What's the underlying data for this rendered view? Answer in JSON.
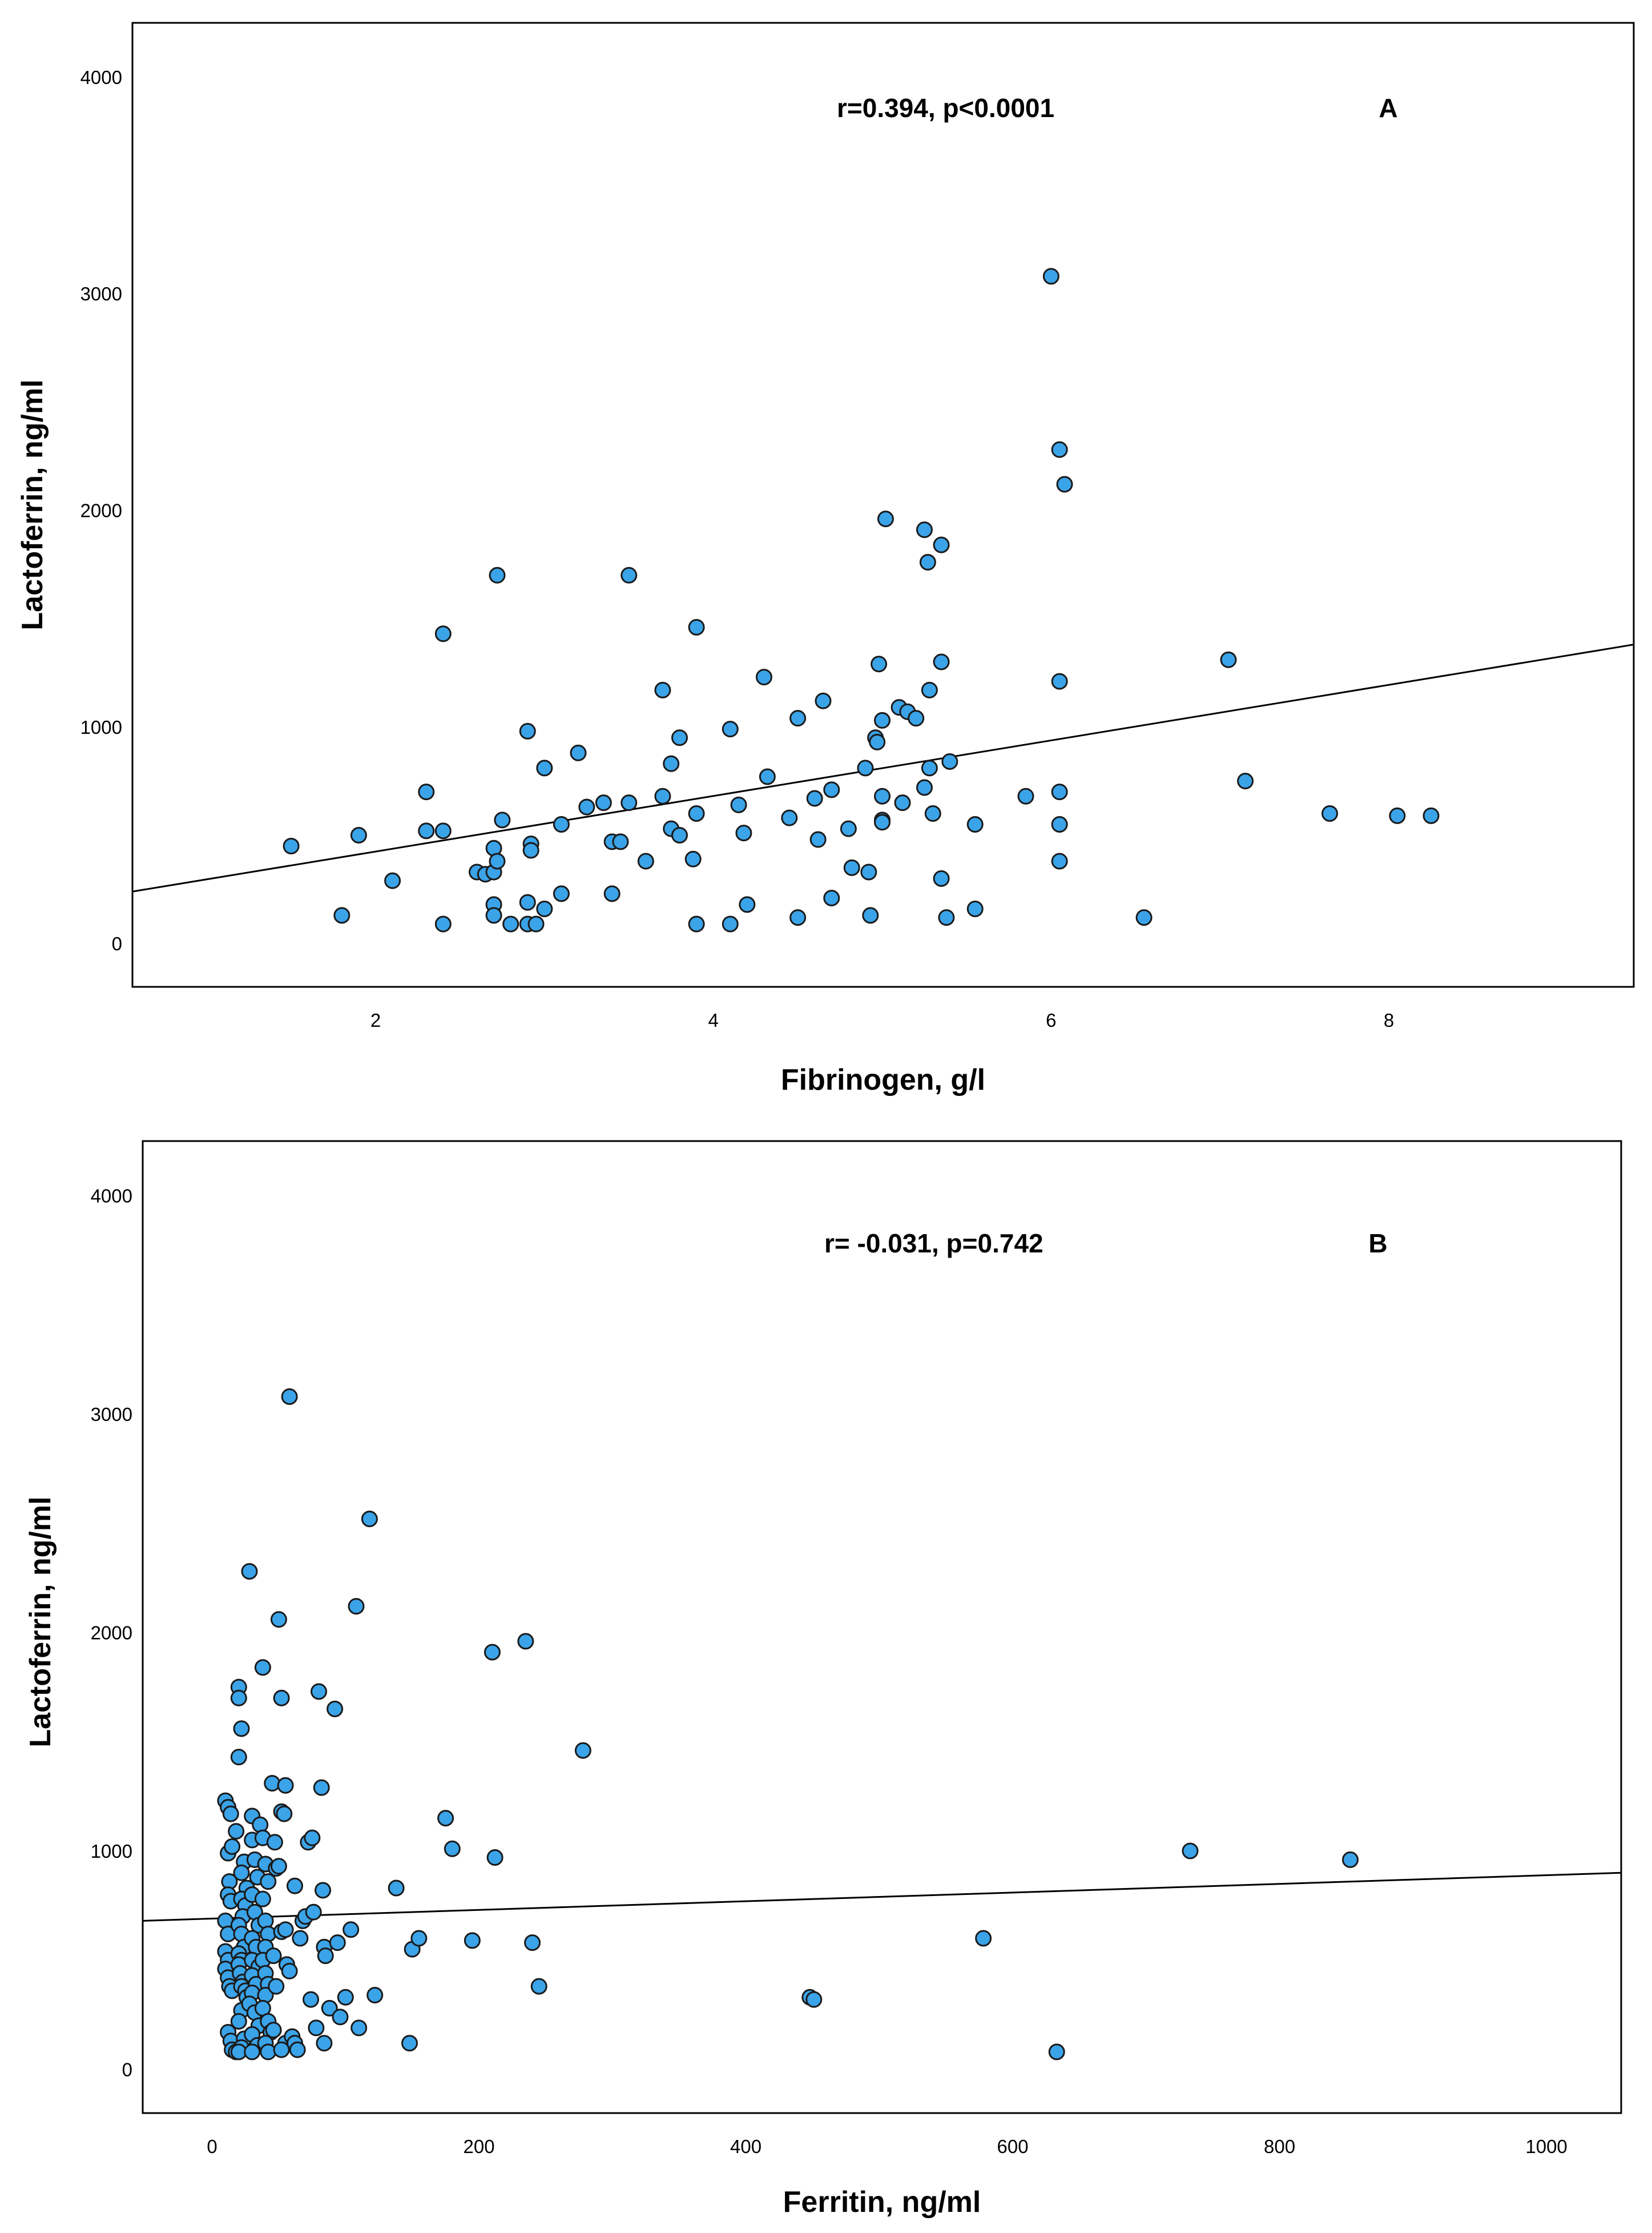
{
  "chart_data": [
    {
      "type": "scatter",
      "panel": "A",
      "title": "",
      "xlabel": "Fibrinogen, g/l",
      "ylabel": "Lactoferrin, ng/ml",
      "annotation": "r=0.394, p<0.0001",
      "panel_label": "A",
      "xlim": [
        0.56,
        9.45
      ],
      "ylim": [
        -200,
        4250
      ],
      "xticks": [
        2,
        4,
        6,
        8
      ],
      "yticks": [
        0,
        1000,
        2000,
        3000,
        4000
      ],
      "grid": false,
      "marker_color": "#3BA3E8",
      "line_color": "#000000",
      "fit_line": {
        "x0": 0.56,
        "y0": 240,
        "x1": 9.45,
        "y1": 1380
      },
      "points": [
        [
          1.5,
          450
        ],
        [
          1.8,
          130
        ],
        [
          1.9,
          500
        ],
        [
          2.1,
          290
        ],
        [
          2.3,
          520
        ],
        [
          2.3,
          700
        ],
        [
          2.4,
          1430
        ],
        [
          2.4,
          520
        ],
        [
          2.4,
          90
        ],
        [
          2.6,
          330
        ],
        [
          2.65,
          320
        ],
        [
          2.7,
          440
        ],
        [
          2.7,
          330
        ],
        [
          2.7,
          180
        ],
        [
          2.7,
          130
        ],
        [
          2.72,
          380
        ],
        [
          2.75,
          570
        ],
        [
          2.72,
          1700
        ],
        [
          2.8,
          90
        ],
        [
          2.9,
          980
        ],
        [
          2.9,
          190
        ],
        [
          2.9,
          90
        ],
        [
          2.92,
          460
        ],
        [
          2.92,
          430
        ],
        [
          2.95,
          90
        ],
        [
          3.0,
          160
        ],
        [
          3.0,
          810
        ],
        [
          3.1,
          550
        ],
        [
          3.1,
          230
        ],
        [
          3.2,
          880
        ],
        [
          3.25,
          630
        ],
        [
          3.35,
          650
        ],
        [
          3.4,
          470
        ],
        [
          3.45,
          470
        ],
        [
          3.4,
          230
        ],
        [
          3.5,
          650
        ],
        [
          3.5,
          1700
        ],
        [
          3.6,
          380
        ],
        [
          3.7,
          1170
        ],
        [
          3.7,
          680
        ],
        [
          3.75,
          830
        ],
        [
          3.75,
          530
        ],
        [
          3.8,
          500
        ],
        [
          3.8,
          950
        ],
        [
          3.9,
          1460
        ],
        [
          3.9,
          600
        ],
        [
          3.88,
          390
        ],
        [
          3.9,
          90
        ],
        [
          4.1,
          990
        ],
        [
          4.1,
          90
        ],
        [
          4.15,
          640
        ],
        [
          4.18,
          510
        ],
        [
          4.2,
          180
        ],
        [
          4.3,
          1230
        ],
        [
          4.32,
          770
        ],
        [
          4.45,
          580
        ],
        [
          4.5,
          1040
        ],
        [
          4.5,
          120
        ],
        [
          4.6,
          670
        ],
        [
          4.62,
          480
        ],
        [
          4.65,
          1120
        ],
        [
          4.7,
          710
        ],
        [
          4.7,
          210
        ],
        [
          4.8,
          530
        ],
        [
          4.82,
          350
        ],
        [
          4.9,
          810
        ],
        [
          4.92,
          330
        ],
        [
          4.93,
          130
        ],
        [
          4.96,
          950
        ],
        [
          4.97,
          930
        ],
        [
          4.98,
          1290
        ],
        [
          5.0,
          1030
        ],
        [
          5.0,
          680
        ],
        [
          5.0,
          570
        ],
        [
          5.0,
          560
        ],
        [
          5.02,
          1960
        ],
        [
          5.1,
          1090
        ],
        [
          5.12,
          650
        ],
        [
          5.15,
          1070
        ],
        [
          5.2,
          1040
        ],
        [
          5.25,
          1910
        ],
        [
          5.25,
          720
        ],
        [
          5.27,
          1760
        ],
        [
          5.28,
          1170
        ],
        [
          5.28,
          810
        ],
        [
          5.3,
          600
        ],
        [
          5.35,
          1840
        ],
        [
          5.35,
          1300
        ],
        [
          5.35,
          300
        ],
        [
          5.38,
          120
        ],
        [
          5.4,
          840
        ],
        [
          5.55,
          550
        ],
        [
          5.55,
          160
        ],
        [
          5.85,
          680
        ],
        [
          6.0,
          3080
        ],
        [
          6.05,
          2280
        ],
        [
          6.05,
          1210
        ],
        [
          6.05,
          700
        ],
        [
          6.05,
          550
        ],
        [
          6.05,
          380
        ],
        [
          6.08,
          2120
        ],
        [
          6.55,
          120
        ],
        [
          7.05,
          1310
        ],
        [
          7.15,
          750
        ],
        [
          7.65,
          600
        ],
        [
          8.05,
          590
        ],
        [
          8.25,
          590
        ]
      ]
    },
    {
      "type": "scatter",
      "panel": "B",
      "title": "",
      "xlabel": "Ferritin, ng/ml",
      "ylabel": "Lactoferrin, ng/ml",
      "annotation": "r= -0.031, p=0.742",
      "panel_label": "B",
      "xlim": [
        -52,
        1056
      ],
      "ylim": [
        -200,
        4250
      ],
      "xticks": [
        0,
        200,
        400,
        600,
        800,
        1000
      ],
      "yticks": [
        0,
        1000,
        2000,
        3000,
        4000
      ],
      "grid": false,
      "marker_color": "#3BA3E8",
      "line_color": "#000000",
      "fit_line": {
        "x0": -52,
        "y0": 680,
        "x1": 1056,
        "y1": 900
      },
      "points": [
        [
          10,
          1230
        ],
        [
          12,
          1200
        ],
        [
          14,
          1170
        ],
        [
          12,
          990
        ],
        [
          15,
          1020
        ],
        [
          18,
          1090
        ],
        [
          13,
          860
        ],
        [
          12,
          800
        ],
        [
          14,
          770
        ],
        [
          10,
          680
        ],
        [
          12,
          620
        ],
        [
          10,
          540
        ],
        [
          12,
          500
        ],
        [
          10,
          460
        ],
        [
          12,
          420
        ],
        [
          13,
          380
        ],
        [
          15,
          360
        ],
        [
          12,
          170
        ],
        [
          14,
          130
        ],
        [
          15,
          90
        ],
        [
          18,
          80
        ],
        [
          20,
          1750
        ],
        [
          20,
          1700
        ],
        [
          22,
          1560
        ],
        [
          20,
          1430
        ],
        [
          24,
          950
        ],
        [
          22,
          900
        ],
        [
          26,
          830
        ],
        [
          22,
          780
        ],
        [
          25,
          750
        ],
        [
          23,
          700
        ],
        [
          20,
          660
        ],
        [
          22,
          620
        ],
        [
          24,
          560
        ],
        [
          20,
          530
        ],
        [
          22,
          500
        ],
        [
          20,
          480
        ],
        [
          21,
          440
        ],
        [
          23,
          400
        ],
        [
          22,
          380
        ],
        [
          25,
          360
        ],
        [
          26,
          330
        ],
        [
          22,
          270
        ],
        [
          20,
          220
        ],
        [
          24,
          140
        ],
        [
          22,
          100
        ],
        [
          20,
          80
        ],
        [
          28,
          2280
        ],
        [
          30,
          1160
        ],
        [
          30,
          1050
        ],
        [
          32,
          960
        ],
        [
          34,
          880
        ],
        [
          30,
          800
        ],
        [
          32,
          720
        ],
        [
          35,
          660
        ],
        [
          30,
          600
        ],
        [
          33,
          560
        ],
        [
          30,
          500
        ],
        [
          35,
          470
        ],
        [
          30,
          430
        ],
        [
          33,
          390
        ],
        [
          30,
          350
        ],
        [
          28,
          300
        ],
        [
          32,
          260
        ],
        [
          35,
          200
        ],
        [
          30,
          160
        ],
        [
          34,
          110
        ],
        [
          30,
          80
        ],
        [
          38,
          1840
        ],
        [
          36,
          1120
        ],
        [
          38,
          1060
        ],
        [
          40,
          940
        ],
        [
          42,
          860
        ],
        [
          38,
          780
        ],
        [
          40,
          680
        ],
        [
          42,
          620
        ],
        [
          40,
          560
        ],
        [
          38,
          500
        ],
        [
          40,
          440
        ],
        [
          42,
          390
        ],
        [
          40,
          340
        ],
        [
          38,
          280
        ],
        [
          42,
          220
        ],
        [
          44,
          170
        ],
        [
          40,
          120
        ],
        [
          42,
          80
        ],
        [
          45,
          1310
        ],
        [
          47,
          1040
        ],
        [
          48,
          920
        ],
        [
          46,
          520
        ],
        [
          48,
          380
        ],
        [
          46,
          180
        ],
        [
          50,
          2060
        ],
        [
          52,
          1700
        ],
        [
          55,
          1300
        ],
        [
          52,
          1180
        ],
        [
          54,
          1170
        ],
        [
          50,
          930
        ],
        [
          52,
          630
        ],
        [
          55,
          640
        ],
        [
          56,
          480
        ],
        [
          58,
          450
        ],
        [
          55,
          120
        ],
        [
          52,
          90
        ],
        [
          58,
          3080
        ],
        [
          60,
          150
        ],
        [
          62,
          120
        ],
        [
          64,
          90
        ],
        [
          62,
          840
        ],
        [
          66,
          600
        ],
        [
          68,
          680
        ],
        [
          70,
          700
        ],
        [
          72,
          1040
        ],
        [
          75,
          1060
        ],
        [
          76,
          720
        ],
        [
          74,
          320
        ],
        [
          78,
          190
        ],
        [
          80,
          1730
        ],
        [
          82,
          1290
        ],
        [
          83,
          820
        ],
        [
          84,
          560
        ],
        [
          85,
          520
        ],
        [
          84,
          120
        ],
        [
          88,
          280
        ],
        [
          92,
          1650
        ],
        [
          94,
          580
        ],
        [
          96,
          240
        ],
        [
          100,
          330
        ],
        [
          104,
          640
        ],
        [
          108,
          2120
        ],
        [
          110,
          190
        ],
        [
          118,
          2520
        ],
        [
          122,
          340
        ],
        [
          138,
          830
        ],
        [
          148,
          120
        ],
        [
          150,
          550
        ],
        [
          155,
          600
        ],
        [
          175,
          1150
        ],
        [
          180,
          1010
        ],
        [
          195,
          590
        ],
        [
          210,
          1910
        ],
        [
          212,
          970
        ],
        [
          235,
          1960
        ],
        [
          240,
          580
        ],
        [
          245,
          380
        ],
        [
          278,
          1460
        ],
        [
          448,
          330
        ],
        [
          451,
          320
        ],
        [
          578,
          600
        ],
        [
          633,
          80
        ],
        [
          733,
          1000
        ],
        [
          853,
          960
        ]
      ]
    }
  ]
}
